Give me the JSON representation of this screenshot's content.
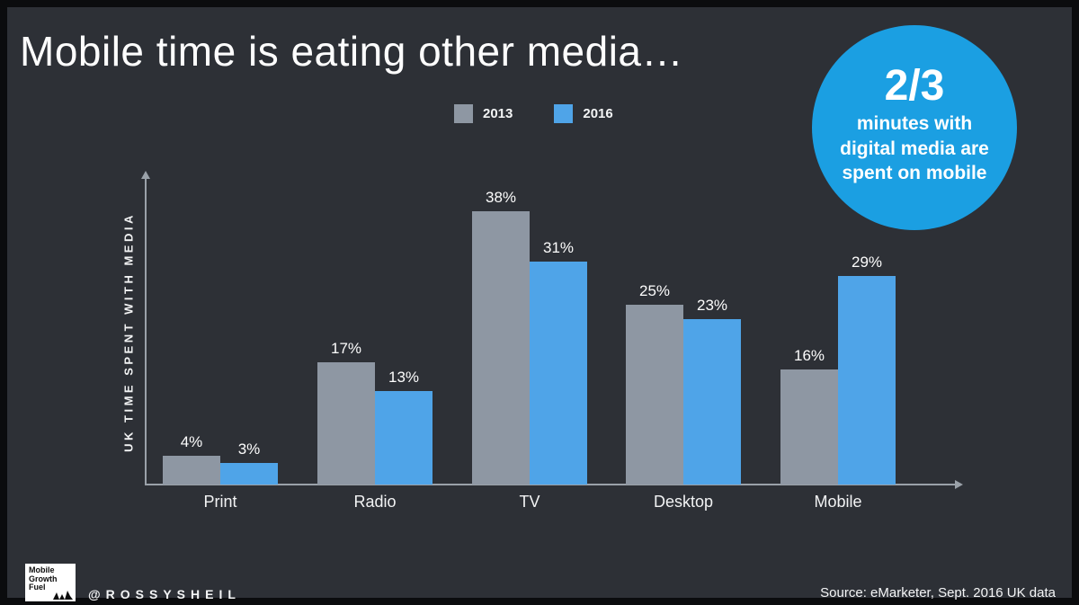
{
  "title": "Mobile time is eating other media…",
  "badge": {
    "big": "2/3",
    "text": "minutes with digital media are spent on mobile",
    "color": "#1b9fe2"
  },
  "chart_data": {
    "type": "bar",
    "categories": [
      "Print",
      "Radio",
      "TV",
      "Desktop",
      "Mobile"
    ],
    "series": [
      {
        "name": "2013",
        "color": "#8e97a3",
        "values": [
          4,
          17,
          38,
          25,
          16
        ]
      },
      {
        "name": "2016",
        "color": "#4fa4e8",
        "values": [
          3,
          13,
          31,
          23,
          29
        ]
      }
    ],
    "ylabel": "UK TIME SPENT WITH MEDIA",
    "xlabel": "",
    "value_suffix": "%",
    "ylim": [
      0,
      40
    ],
    "grid": false,
    "legend_position": "top-center",
    "background": "#2d3036"
  },
  "footer": {
    "logo_lines": [
      "Mobile",
      "Growth",
      "Fuel"
    ],
    "handle": "@ROSSYSHEIL",
    "source": "Source: eMarketer, Sept. 2016 UK data"
  }
}
